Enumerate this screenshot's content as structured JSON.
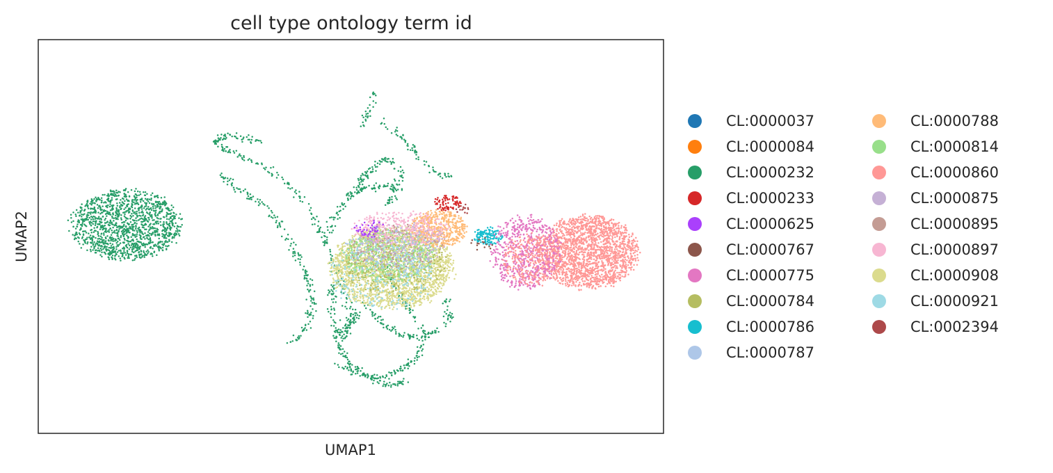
{
  "chart_data": {
    "type": "scatter",
    "title": "cell type ontology term id",
    "xlabel": "UMAP1",
    "ylabel": "UMAP2",
    "xlim": [
      0,
      100
    ],
    "ylim": [
      0,
      100
    ],
    "ticks": "none",
    "grid": false,
    "legend_placement": "right",
    "legend_columns": 2,
    "legend": [
      {
        "label": "CL:0000037",
        "color": "#1f77b4"
      },
      {
        "label": "CL:0000084",
        "color": "#ff7f0e"
      },
      {
        "label": "CL:0000232",
        "color": "#279e68"
      },
      {
        "label": "CL:0000233",
        "color": "#d62728"
      },
      {
        "label": "CL:0000625",
        "color": "#aa40fc"
      },
      {
        "label": "CL:0000767",
        "color": "#8c564b"
      },
      {
        "label": "CL:0000775",
        "color": "#e377c2"
      },
      {
        "label": "CL:0000784",
        "color": "#b5bd61"
      },
      {
        "label": "CL:0000786",
        "color": "#17becf"
      },
      {
        "label": "CL:0000787",
        "color": "#aec7e8"
      },
      {
        "label": "CL:0000788",
        "color": "#ffbb78"
      },
      {
        "label": "CL:0000814",
        "color": "#98df8a"
      },
      {
        "label": "CL:0000860",
        "color": "#ff9896"
      },
      {
        "label": "CL:0000875",
        "color": "#c5b0d5"
      },
      {
        "label": "CL:0000895",
        "color": "#c49c94"
      },
      {
        "label": "CL:0000897",
        "color": "#f7b6d2"
      },
      {
        "label": "CL:0000908",
        "color": "#dbdb8d"
      },
      {
        "label": "CL:0000921",
        "color": "#9edae5"
      },
      {
        "label": "CL:0002394",
        "color": "#ad494a"
      }
    ],
    "clusters": [
      {
        "name": "CL:0000232",
        "shape": "blob",
        "cx": 14,
        "cy": 53,
        "rx": 9.5,
        "ry": 9.5,
        "n": 1400
      },
      {
        "name": "CL:0000232",
        "shape": "trajectory",
        "path": [
          [
            49,
            24
          ],
          [
            50,
            30
          ],
          [
            48,
            40
          ],
          [
            46,
            48
          ],
          [
            44,
            55
          ],
          [
            41,
            62
          ],
          [
            36,
            68
          ],
          [
            30,
            72
          ],
          [
            28,
            74
          ],
          [
            30,
            76
          ],
          [
            36,
            74
          ]
        ],
        "n": 240
      },
      {
        "name": "CL:0000232",
        "shape": "trajectory",
        "path": [
          [
            40,
            22
          ],
          [
            43,
            27
          ],
          [
            44,
            33
          ],
          [
            43,
            40
          ],
          [
            41,
            46
          ],
          [
            39,
            52
          ],
          [
            36,
            58
          ],
          [
            32,
            62
          ],
          [
            29,
            66
          ]
        ],
        "n": 180
      },
      {
        "name": "CL:0000232",
        "shape": "trajectory",
        "path": [
          [
            47,
            18
          ],
          [
            51,
            15
          ],
          [
            55,
            14
          ],
          [
            58,
            16
          ],
          [
            61,
            20
          ],
          [
            62,
            25
          ],
          [
            60,
            30
          ],
          [
            58,
            35
          ],
          [
            56,
            40
          ],
          [
            55,
            45
          ]
        ],
        "n": 180
      },
      {
        "name": "CL:0000232",
        "shape": "trajectory",
        "path": [
          [
            46,
            50
          ],
          [
            48,
            56
          ],
          [
            50,
            61
          ],
          [
            52,
            65
          ],
          [
            54,
            68
          ],
          [
            56,
            70
          ],
          [
            58,
            67
          ],
          [
            57,
            62
          ],
          [
            56,
            58
          ]
        ],
        "n": 150
      },
      {
        "name": "CL:0000232",
        "shape": "trajectory",
        "path": [
          [
            47,
            38
          ],
          [
            47,
            30
          ],
          [
            48,
            22
          ],
          [
            50,
            17
          ],
          [
            53,
            14
          ],
          [
            56,
            12
          ],
          [
            59,
            13
          ]
        ],
        "n": 140
      },
      {
        "name": "CL:0000232",
        "shape": "trajectory",
        "path": [
          [
            52,
            33
          ],
          [
            55,
            28
          ],
          [
            58,
            25
          ],
          [
            61,
            24
          ],
          [
            64,
            26
          ],
          [
            66,
            30
          ],
          [
            65,
            35
          ]
        ],
        "n": 110
      },
      {
        "name": "CL:0000232",
        "shape": "trajectory",
        "path": [
          [
            48,
            25
          ],
          [
            50,
            28
          ],
          [
            51,
            31
          ]
        ],
        "n": 40
      },
      {
        "name": "CL:0000232",
        "shape": "trajectory",
        "path": [
          [
            52,
            78
          ],
          [
            53,
            82
          ],
          [
            54,
            87
          ]
        ],
        "n": 30
      },
      {
        "name": "CL:0000232",
        "shape": "trajectory",
        "path": [
          [
            49,
            60
          ],
          [
            52,
            62
          ],
          [
            55,
            63
          ],
          [
            58,
            62
          ]
        ],
        "n": 60
      },
      {
        "name": "CL:0000232",
        "shape": "trajectory",
        "path": [
          [
            55,
            80
          ],
          [
            57,
            77
          ],
          [
            59,
            74
          ],
          [
            61,
            70
          ],
          [
            63,
            67
          ],
          [
            66,
            65
          ]
        ],
        "n": 70
      },
      {
        "name": "CL:0000908",
        "shape": "blob",
        "cx": 56.5,
        "cy": 42,
        "rx": 10.5,
        "ry": 11,
        "n": 2300
      },
      {
        "name": "CL:0000814",
        "shape": "blob",
        "cx": 56,
        "cy": 45,
        "rx": 8,
        "ry": 7,
        "n": 500
      },
      {
        "name": "CL:0000784",
        "shape": "blob",
        "cx": 57,
        "cy": 43,
        "rx": 9,
        "ry": 9,
        "n": 260
      },
      {
        "name": "CL:0000788",
        "shape": "blob",
        "cx": 64,
        "cy": 52,
        "rx": 5,
        "ry": 5,
        "n": 500
      },
      {
        "name": "CL:0000897",
        "shape": "blob",
        "cx": 58,
        "cy": 52,
        "rx": 8,
        "ry": 5,
        "n": 380
      },
      {
        "name": "CL:0000921",
        "shape": "blob",
        "cx": 55,
        "cy": 40,
        "rx": 9,
        "ry": 9,
        "n": 260
      },
      {
        "name": "CL:0000787",
        "shape": "blob",
        "cx": 56,
        "cy": 46,
        "rx": 8,
        "ry": 7,
        "n": 180
      },
      {
        "name": "CL:0000875",
        "shape": "blob",
        "cx": 58,
        "cy": 48,
        "rx": 8,
        "ry": 6,
        "n": 160
      },
      {
        "name": "CL:0000895",
        "shape": "blob",
        "cx": 57,
        "cy": 47,
        "rx": 8,
        "ry": 7,
        "n": 100
      },
      {
        "name": "CL:0000625",
        "shape": "blob",
        "cx": 53,
        "cy": 52,
        "rx": 2.5,
        "ry": 2.5,
        "n": 45
      },
      {
        "name": "CL:0000786",
        "shape": "blob",
        "cx": 72,
        "cy": 50,
        "rx": 2.5,
        "ry": 2.5,
        "n": 140
      },
      {
        "name": "CL:0000233",
        "shape": "blob",
        "cx": 65.5,
        "cy": 58.5,
        "rx": 2.5,
        "ry": 2,
        "n": 80
      },
      {
        "name": "CL:0002394",
        "shape": "blob",
        "cx": 68,
        "cy": 57,
        "rx": 1.5,
        "ry": 1.5,
        "n": 15
      },
      {
        "name": "CL:0000767",
        "shape": "blob",
        "cx": 71,
        "cy": 48,
        "rx": 2,
        "ry": 2,
        "n": 15
      },
      {
        "name": "CL:0000860",
        "shape": "blob",
        "cx": 88,
        "cy": 46,
        "rx": 8.5,
        "ry": 10,
        "n": 2000
      },
      {
        "name": "CL:0000775",
        "shape": "blob",
        "cx": 78,
        "cy": 46,
        "rx": 6,
        "ry": 10,
        "n": 650
      },
      {
        "name": "CL:0000860",
        "shape": "blob",
        "cx": 79,
        "cy": 44,
        "rx": 5,
        "ry": 7,
        "n": 300
      }
    ]
  }
}
